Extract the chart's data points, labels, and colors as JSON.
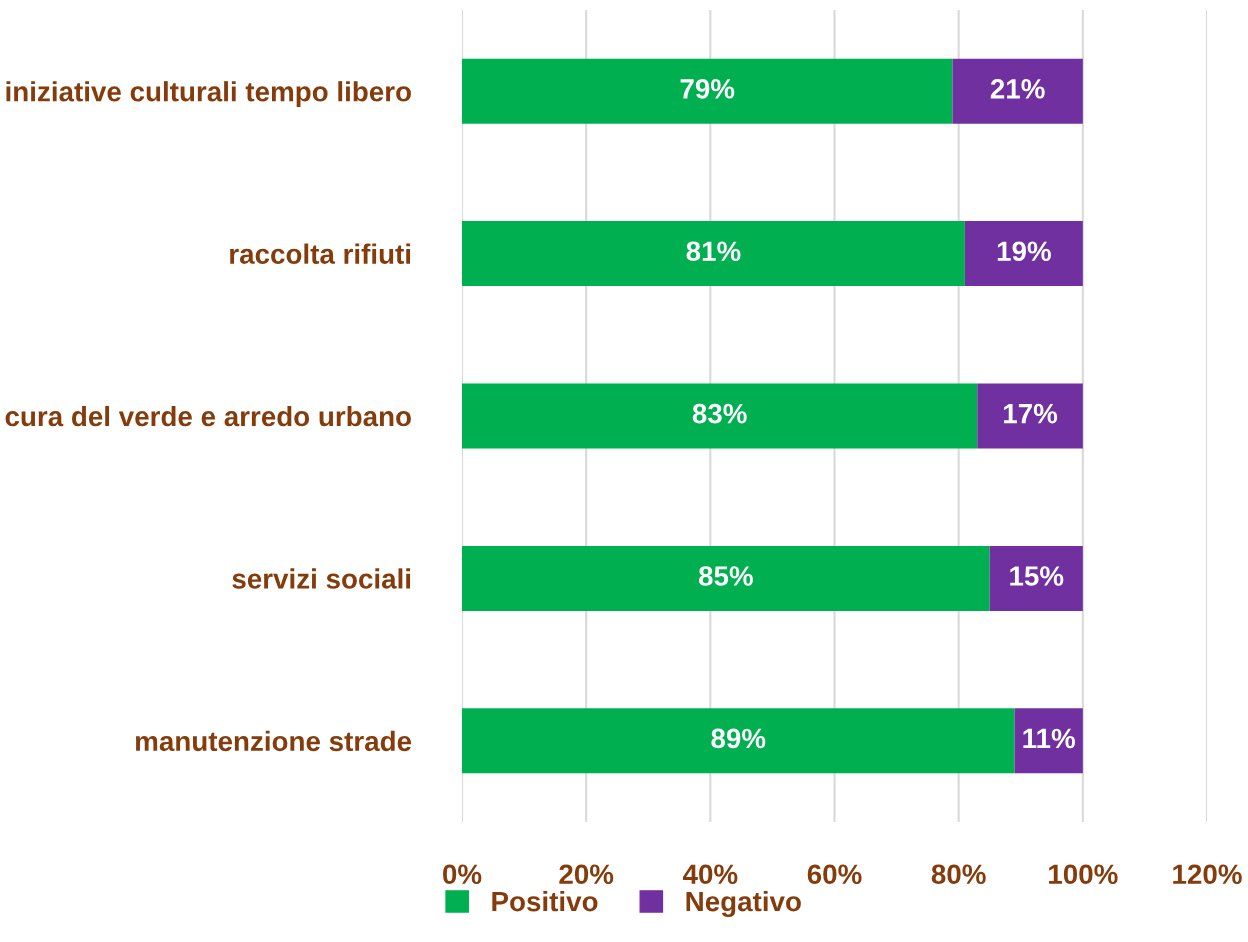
{
  "chart_data": {
    "type": "bar",
    "orientation": "horizontal",
    "stacked": true,
    "categories": [
      "iniziative culturali tempo libero",
      "raccolta rifiuti",
      "cura del verde e arredo urbano",
      "servizi sociali",
      "manutenzione strade"
    ],
    "series": [
      {
        "name": "Positivo",
        "color": "#00b050",
        "values": [
          79,
          81,
          83,
          85,
          89
        ],
        "value_labels": [
          "79%",
          "81%",
          "83%",
          "85%",
          "89%"
        ]
      },
      {
        "name": "Negativo",
        "color": "#7030a0",
        "values": [
          21,
          19,
          17,
          15,
          11
        ],
        "value_labels": [
          "21%",
          "19%",
          "17%",
          "15%",
          "11%"
        ]
      }
    ],
    "xlim": [
      0,
      120
    ],
    "xticks": [
      {
        "value": 0,
        "label": "0%"
      },
      {
        "value": 20,
        "label": "20%"
      },
      {
        "value": 40,
        "label": "40%"
      },
      {
        "value": 60,
        "label": "60%"
      },
      {
        "value": 80,
        "label": "80%"
      },
      {
        "value": 100,
        "label": "100%"
      },
      {
        "value": 120,
        "label": "120%"
      }
    ],
    "grid": "x",
    "legend": "bottom"
  }
}
